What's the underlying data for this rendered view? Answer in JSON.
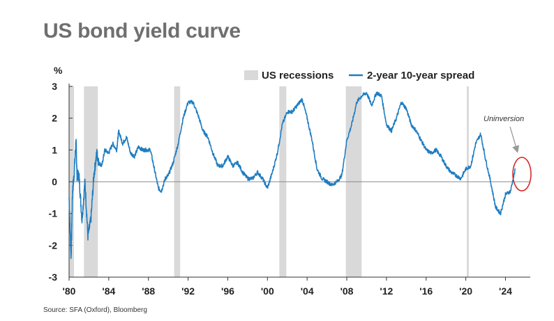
{
  "chart_data": {
    "type": "line",
    "title": "US bond yield curve",
    "ylabel": "%",
    "xlim": [
      1980,
      2026.5
    ],
    "ylim": [
      -3,
      3
    ],
    "yticks": [
      3,
      2,
      1,
      0,
      -1,
      -2,
      -3
    ],
    "ytick_labels": [
      "3",
      "2",
      "1",
      "0",
      "-1",
      "-2",
      "-3"
    ],
    "xticks": [
      1980,
      1984,
      1988,
      1992,
      1996,
      2000,
      2004,
      2008,
      2012,
      2016,
      2020,
      2024
    ],
    "xtick_labels": [
      "'80",
      "'84",
      "'88",
      "'92",
      "'96",
      "'00",
      "'04",
      "'08",
      "'12",
      "'16",
      "'20",
      "'24"
    ],
    "legend_position": "top",
    "series": [
      {
        "name": "2-year 10-year spread",
        "color": "#1f7dc1",
        "x": [
          1980.0,
          1980.2,
          1980.35,
          1980.5,
          1980.7,
          1980.8,
          1981.0,
          1981.3,
          1981.6,
          1981.9,
          1982.2,
          1982.5,
          1982.8,
          1983.0,
          1983.3,
          1983.6,
          1984.0,
          1984.4,
          1984.8,
          1985.0,
          1985.4,
          1985.8,
          1986.2,
          1986.6,
          1987.0,
          1987.4,
          1987.8,
          1988.2,
          1988.6,
          1989.0,
          1989.3,
          1989.7,
          1990.0,
          1990.5,
          1991.0,
          1991.5,
          1992.0,
          1992.5,
          1993.0,
          1993.5,
          1994.0,
          1994.5,
          1995.0,
          1995.5,
          1996.0,
          1996.5,
          1997.0,
          1997.5,
          1998.0,
          1998.5,
          1999.0,
          1999.5,
          2000.0,
          2000.5,
          2001.0,
          2001.5,
          2002.0,
          2002.5,
          2003.0,
          2003.5,
          2004.0,
          2004.5,
          2005.0,
          2005.5,
          2006.0,
          2006.5,
          2007.0,
          2007.5,
          2008.0,
          2008.5,
          2009.0,
          2009.5,
          2010.0,
          2010.5,
          2011.0,
          2011.5,
          2012.0,
          2012.5,
          2013.0,
          2013.5,
          2014.0,
          2014.5,
          2015.0,
          2015.5,
          2016.0,
          2016.5,
          2017.0,
          2017.5,
          2018.0,
          2018.5,
          2019.0,
          2019.5,
          2020.0,
          2020.5,
          2021.0,
          2021.5,
          2022.0,
          2022.5,
          2023.0,
          2023.5,
          2024.0,
          2024.5,
          2025.0
        ],
        "y": [
          -0.5,
          -2.4,
          -0.3,
          0.2,
          1.3,
          0.2,
          0.2,
          -1.2,
          0.0,
          -1.7,
          -1.2,
          0.2,
          0.9,
          0.6,
          0.5,
          1.0,
          0.9,
          1.2,
          1.0,
          1.6,
          1.2,
          1.4,
          0.9,
          0.8,
          1.1,
          1.0,
          1.0,
          1.0,
          0.4,
          -0.2,
          -0.3,
          0.1,
          0.2,
          0.6,
          1.2,
          2.0,
          2.5,
          2.5,
          2.1,
          1.6,
          1.4,
          0.9,
          0.5,
          0.5,
          0.8,
          0.5,
          0.6,
          0.3,
          0.1,
          0.1,
          0.3,
          0.1,
          -0.2,
          0.3,
          0.9,
          1.8,
          2.2,
          2.2,
          2.4,
          2.6,
          2.0,
          1.3,
          0.4,
          0.1,
          0.0,
          -0.1,
          0.0,
          0.2,
          1.3,
          1.8,
          2.5,
          2.7,
          2.8,
          2.4,
          2.8,
          2.7,
          1.8,
          1.6,
          2.0,
          2.5,
          2.3,
          1.8,
          1.6,
          1.3,
          1.0,
          0.9,
          1.0,
          0.8,
          0.5,
          0.3,
          0.2,
          0.1,
          0.4,
          0.5,
          1.2,
          1.5,
          0.7,
          0.0,
          -0.8,
          -1.0,
          -0.4,
          -0.3,
          0.4
        ]
      },
      {
        "name": "US recessions",
        "color": "#d9d9d9",
        "x": [],
        "y": [],
        "periods": [
          [
            1980.0,
            1980.5
          ],
          [
            1981.5,
            1982.9
          ],
          [
            1990.6,
            1991.2
          ],
          [
            2001.2,
            2001.9
          ],
          [
            2007.9,
            2009.5
          ],
          [
            2020.1,
            2020.3
          ]
        ]
      }
    ],
    "annotations": [
      {
        "text": "Uninversion",
        "x": 2024.7,
        "y": 0.4
      }
    ],
    "grid": false
  },
  "source": "Source: SFA (Oxford), Bloomberg"
}
